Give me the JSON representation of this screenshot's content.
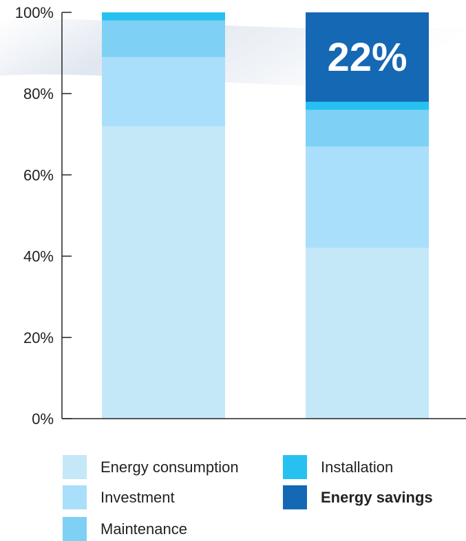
{
  "chart_data": {
    "type": "bar",
    "stacked": true,
    "categories": [
      "",
      ""
    ],
    "yticks": [
      "0%",
      "20%",
      "40%",
      "60%",
      "80%",
      "100%"
    ],
    "ylim": [
      0,
      100
    ],
    "series": [
      {
        "name": "Energy consumption",
        "color": "#c5e8f8",
        "values": [
          72,
          42
        ]
      },
      {
        "name": "Investment",
        "color": "#a9dffa",
        "values": [
          17,
          25
        ]
      },
      {
        "name": "Maintenance",
        "color": "#7ed1f5",
        "values": [
          9,
          9
        ]
      },
      {
        "name": "Installation",
        "color": "#26c1f0",
        "values": [
          2,
          2
        ]
      },
      {
        "name": "Energy savings",
        "color": "#1568b4",
        "values": [
          0,
          22
        ]
      }
    ],
    "annotations": [
      {
        "category_index": 1,
        "series": "Energy savings",
        "text": "22%"
      }
    ],
    "legend_position": "bottom"
  }
}
